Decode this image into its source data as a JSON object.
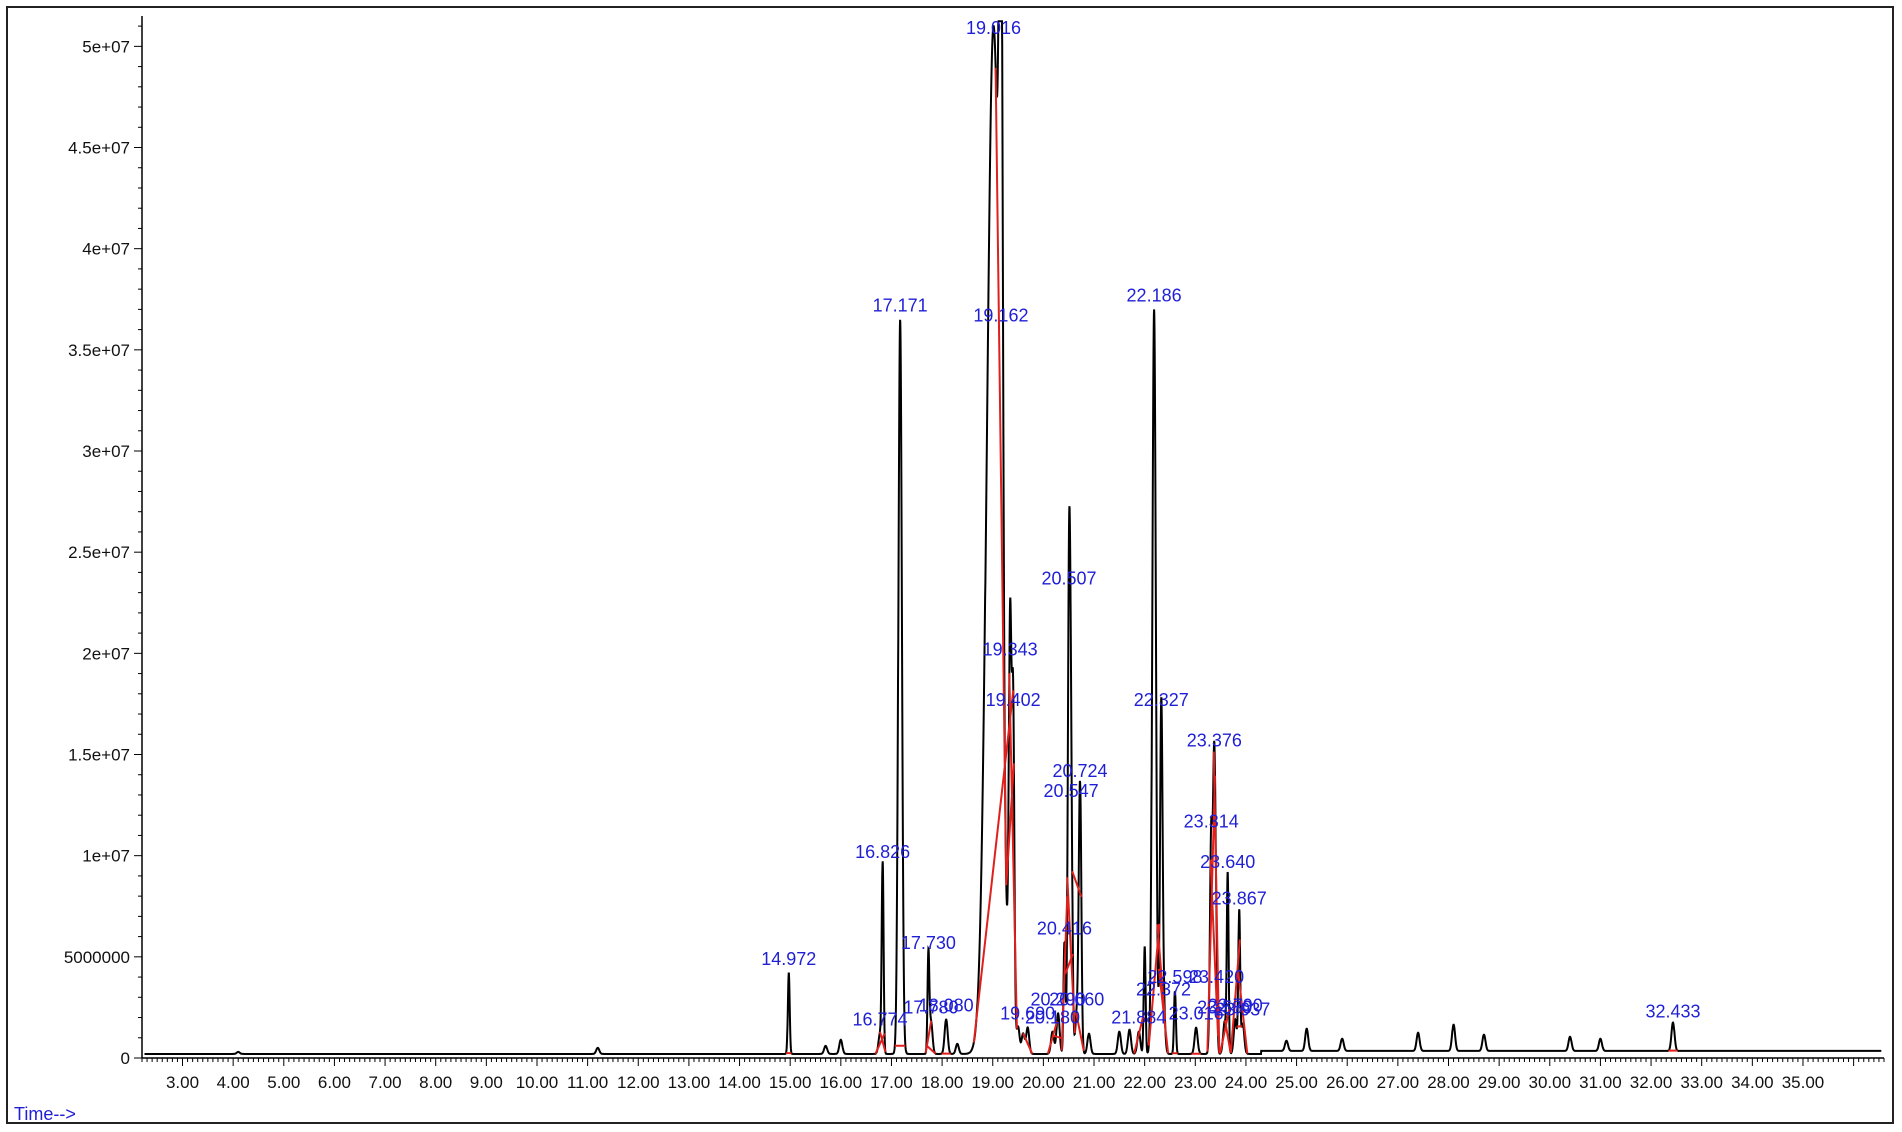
{
  "x_axis_caption": "Time-->",
  "colors": {
    "trace": "#000000",
    "integration": "#e0201c",
    "peak_label": "#1f1fd6",
    "axis": "#000000"
  },
  "chart_data": {
    "type": "line",
    "title": "",
    "xlabel": "Time-->",
    "ylabel": "",
    "xlim": [
      2.2,
      36.6
    ],
    "ylim": [
      0,
      51500000
    ],
    "grid": false,
    "x_ticks": [
      3,
      4,
      5,
      6,
      7,
      8,
      9,
      10,
      11,
      12,
      13,
      14,
      15,
      16,
      17,
      18,
      19,
      20,
      21,
      22,
      23,
      24,
      25,
      26,
      27,
      28,
      29,
      30,
      31,
      32,
      33,
      34,
      35
    ],
    "x_tick_labels": [
      "3.00",
      "4.00",
      "5.00",
      "6.00",
      "7.00",
      "8.00",
      "9.00",
      "10.00",
      "11.00",
      "12.00",
      "13.00",
      "14.00",
      "15.00",
      "16.00",
      "17.00",
      "18.00",
      "19.00",
      "20.00",
      "21.00",
      "22.00",
      "23.00",
      "24.00",
      "25.00",
      "26.00",
      "27.00",
      "28.00",
      "29.00",
      "30.00",
      "31.00",
      "32.00",
      "33.00",
      "34.00",
      "35.00"
    ],
    "y_ticks": [
      0,
      5000000,
      10000000,
      15000000,
      20000000,
      25000000,
      30000000,
      35000000,
      40000000,
      45000000,
      50000000
    ],
    "y_tick_labels": [
      "0",
      "5000000",
      "1e+07",
      "1.5e+07",
      "2e+07",
      "2.5e+07",
      "3e+07",
      "3.5e+07",
      "4e+07",
      "4.5e+07",
      "5e+07"
    ],
    "baseline": 200000,
    "peaks": [
      {
        "label": "14.972",
        "rt": 14.972,
        "height": 4200000
      },
      {
        "label": "16.774",
        "rt": 16.774,
        "height": 1200000
      },
      {
        "label": "16.826",
        "rt": 16.826,
        "height": 9500000
      },
      {
        "label": "17.171",
        "rt": 17.171,
        "height": 36500000
      },
      {
        "label": "17.730",
        "rt": 17.73,
        "height": 5000000
      },
      {
        "label": "17.780",
        "rt": 17.78,
        "height": 1800000
      },
      {
        "label": "18.080",
        "rt": 18.08,
        "height": 1900000
      },
      {
        "label": "19.016",
        "rt": 19.016,
        "height": 51000000
      },
      {
        "label": "19.162",
        "rt": 19.162,
        "height": 36000000
      },
      {
        "label": "19.343",
        "rt": 19.343,
        "height": 19500000
      },
      {
        "label": "19.402",
        "rt": 19.402,
        "height": 17000000
      },
      {
        "label": "19.690",
        "rt": 19.69,
        "height": 1500000
      },
      {
        "label": "20.180",
        "rt": 20.18,
        "height": 1300000
      },
      {
        "label": "20.290",
        "rt": 20.29,
        "height": 2200000
      },
      {
        "label": "20.416",
        "rt": 20.416,
        "height": 5700000
      },
      {
        "label": "20.507",
        "rt": 20.507,
        "height": 23000000
      },
      {
        "label": "20.547",
        "rt": 20.547,
        "height": 12500000
      },
      {
        "label": "20.660",
        "rt": 20.66,
        "height": 2200000
      },
      {
        "label": "20.724",
        "rt": 20.724,
        "height": 13500000
      },
      {
        "label": "21.884",
        "rt": 21.884,
        "height": 1300000
      },
      {
        "label": "22.186",
        "rt": 22.186,
        "height": 37000000
      },
      {
        "label": "22.327",
        "rt": 22.327,
        "height": 17000000
      },
      {
        "label": "22.372",
        "rt": 22.372,
        "height": 2700000
      },
      {
        "label": "22.598",
        "rt": 22.598,
        "height": 3300000
      },
      {
        "label": "23.016",
        "rt": 23.016,
        "height": 1500000
      },
      {
        "label": "23.314",
        "rt": 23.314,
        "height": 11000000
      },
      {
        "label": "23.376",
        "rt": 23.376,
        "height": 15000000
      },
      {
        "label": "23.420",
        "rt": 23.42,
        "height": 3300000
      },
      {
        "label": "23.580",
        "rt": 23.58,
        "height": 1800000
      },
      {
        "label": "23.640",
        "rt": 23.64,
        "height": 9000000
      },
      {
        "label": "23.790",
        "rt": 23.79,
        "height": 1900000
      },
      {
        "label": "23.867",
        "rt": 23.867,
        "height": 7200000
      },
      {
        "label": "23.937",
        "rt": 23.937,
        "height": 1700000
      },
      {
        "label": "32.433",
        "rt": 32.433,
        "height": 1600000
      }
    ],
    "minor_peaks": [
      {
        "rt": 4.1,
        "height": 300000
      },
      {
        "rt": 11.2,
        "height": 500000
      },
      {
        "rt": 15.7,
        "height": 600000
      },
      {
        "rt": 16.0,
        "height": 900000
      },
      {
        "rt": 18.3,
        "height": 700000
      },
      {
        "rt": 19.5,
        "height": 1500000
      },
      {
        "rt": 19.6,
        "height": 1200000
      },
      {
        "rt": 20.9,
        "height": 1200000
      },
      {
        "rt": 21.5,
        "height": 1300000
      },
      {
        "rt": 21.7,
        "height": 1400000
      },
      {
        "rt": 22.0,
        "height": 5500000
      },
      {
        "rt": 24.8,
        "height": 700000
      },
      {
        "rt": 25.2,
        "height": 1300000
      },
      {
        "rt": 25.9,
        "height": 800000
      },
      {
        "rt": 27.4,
        "height": 1100000
      },
      {
        "rt": 28.1,
        "height": 1500000
      },
      {
        "rt": 28.7,
        "height": 1000000
      },
      {
        "rt": 30.4,
        "height": 900000
      },
      {
        "rt": 31.0,
        "height": 800000
      }
    ]
  }
}
